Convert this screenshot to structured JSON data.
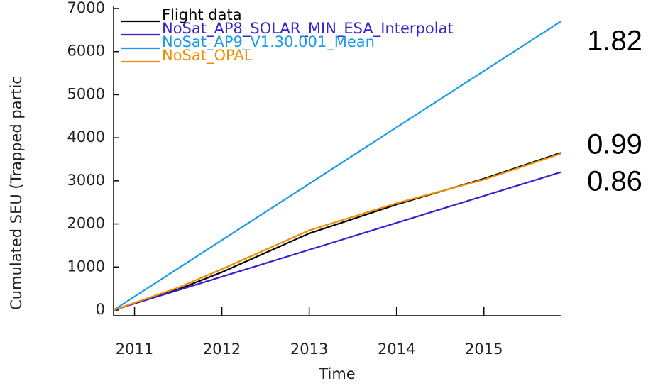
{
  "chart_data": {
    "type": "line",
    "ylabel": "Cumulated SEU (Trapped partic",
    "xlabel": "Time",
    "x": [
      2010.76,
      2011.5,
      2012,
      2013,
      2014,
      2015,
      2015.88
    ],
    "series": [
      {
        "name": "Flight data",
        "color": "#000000",
        "values": [
          0,
          480,
          880,
          1780,
          2450,
          3050,
          3650
        ]
      },
      {
        "name": "NoSat_AP8_SOLAR_MIN_ESA_Interpolat",
        "color": "#3a1fd0",
        "values": [
          0,
          462,
          775,
          1400,
          2025,
          2650,
          3200
        ]
      },
      {
        "name": "NoSat_AP9_V1.30.001_Mean",
        "color": "#1a9be8",
        "values": [
          0,
          969,
          1623,
          2932,
          4241,
          5550,
          6700
        ]
      },
      {
        "name": "NoSat_OPAL",
        "color": "#f08c00",
        "values": [
          0,
          520,
          950,
          1850,
          2480,
          3030,
          3630
        ]
      }
    ],
    "xlim": [
      2010.76,
      2015.88
    ],
    "xticks": [
      2011,
      2012,
      2013,
      2014,
      2015
    ],
    "ylim": [
      0,
      7000
    ],
    "yticks": [
      0,
      1000,
      2000,
      3000,
      4000,
      5000,
      6000,
      7000
    ],
    "annotations": [
      "1.82",
      "0.99",
      "0.86"
    ]
  }
}
